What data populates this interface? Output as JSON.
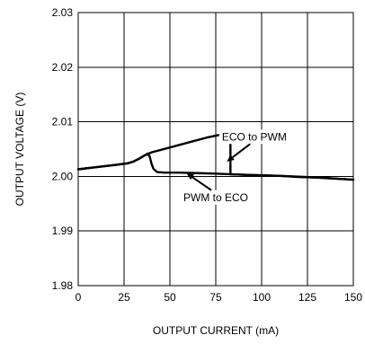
{
  "chart_data": {
    "type": "line",
    "xlabel": "OUTPUT CURRENT (mA)",
    "ylabel": "OUTPUT VOLTAGE (V)",
    "xlim": [
      0,
      150
    ],
    "ylim": [
      1.98,
      2.03
    ],
    "x_ticks": [
      "0",
      "25",
      "50",
      "75",
      "100",
      "125",
      "150"
    ],
    "y_ticks": [
      "1.98",
      "1.99",
      "2.00",
      "2.01",
      "2.02",
      "2.03"
    ],
    "grid": true,
    "series": [
      {
        "name": "ECO to PWM",
        "x": [
          0,
          10,
          20,
          27,
          30,
          33,
          36,
          40,
          50,
          60,
          70,
          80,
          83,
          83,
          90,
          100,
          110,
          120,
          130,
          140,
          150
        ],
        "y": [
          2.0013,
          2.0017,
          2.0021,
          2.0024,
          2.0027,
          2.0032,
          2.0038,
          2.0044,
          2.0053,
          2.0062,
          2.0071,
          2.0078,
          2.0081,
          2.0004,
          2.0003,
          2.0002,
          2.0001,
          1.9999,
          1.9998,
          1.9996,
          1.9994
        ]
      },
      {
        "name": "PWM to ECO",
        "x": [
          0,
          10,
          20,
          27,
          30,
          33,
          36,
          38,
          39,
          40,
          41,
          43,
          47,
          55,
          65,
          75,
          90,
          110,
          130,
          150
        ],
        "y": [
          2.0013,
          2.0017,
          2.0021,
          2.0024,
          2.0027,
          2.0032,
          2.0038,
          2.0042,
          2.0036,
          2.0023,
          2.0014,
          2.0008,
          2.0007,
          2.0007,
          2.0006,
          2.0005,
          2.0003,
          2.0001,
          1.9998,
          1.9994
        ]
      }
    ],
    "annotations": [
      {
        "text": "ECO to PWM",
        "x": 96,
        "y": 2.0066,
        "target_x": 81,
        "target_y": 2.0027
      },
      {
        "text": "PWM to ECO",
        "x": 75,
        "y": 1.9955,
        "target_x": 59,
        "target_y": 2.0006
      }
    ]
  }
}
